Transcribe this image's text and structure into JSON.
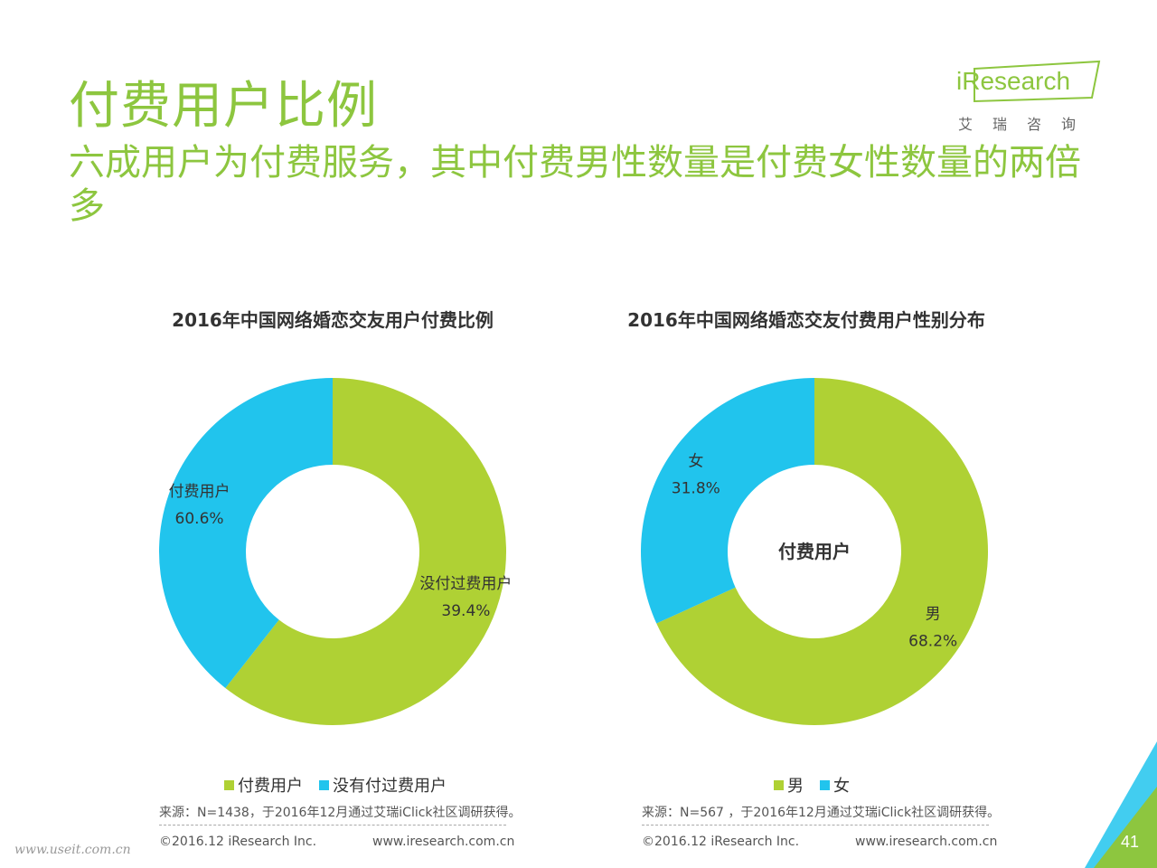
{
  "header": {
    "title": "付费用户比例",
    "subtitle": "六成用户为付费服务，其中付费男性数量是付费女性数量的两倍多"
  },
  "logo": {
    "brand": "iResearch",
    "cn": "艾瑞咨询"
  },
  "colors": {
    "green": "#afd134",
    "blue": "#21c4ed",
    "accent": "#8dc63f"
  },
  "chart_data": [
    {
      "type": "pie",
      "title": "2016年中国网络婚恋交友用户付费比例",
      "series": [
        {
          "name": "付费用户",
          "value": 60.6,
          "label": "60.6%",
          "color": "#afd134"
        },
        {
          "name": "没有付过费用户",
          "value": 39.4,
          "label": "39.4%",
          "color": "#21c4ed"
        }
      ],
      "slice_labels": [
        {
          "name": "付费用户",
          "value": "60.6%"
        },
        {
          "name": "没付过费用户",
          "value": "39.4%"
        }
      ],
      "center_label": "",
      "legend": [
        "付费用户",
        "没有付过费用户"
      ],
      "legend_position": "bottom",
      "source": "来源：N=1438，于2016年12月通过艾瑞iClick社区调研获得。"
    },
    {
      "type": "pie",
      "title": "2016年中国网络婚恋交友付费用户性别分布",
      "series": [
        {
          "name": "男",
          "value": 68.2,
          "label": "68.2%",
          "color": "#afd134"
        },
        {
          "name": "女",
          "value": 31.8,
          "label": "31.8%",
          "color": "#21c4ed"
        }
      ],
      "slice_labels": [
        {
          "name": "男",
          "value": "68.2%"
        },
        {
          "name": "女",
          "value": "31.8%"
        }
      ],
      "center_label": "付费用户",
      "legend": [
        "男",
        "女"
      ],
      "legend_position": "bottom",
      "source": "来源：N=567 ，于2016年12月通过艾瑞iClick社区调研获得。"
    }
  ],
  "footer": {
    "copyright": "©2016.12 iResearch Inc.",
    "site": "www.iresearch.com.cn",
    "watermark": "www.useit.com.cn",
    "page": "41"
  }
}
